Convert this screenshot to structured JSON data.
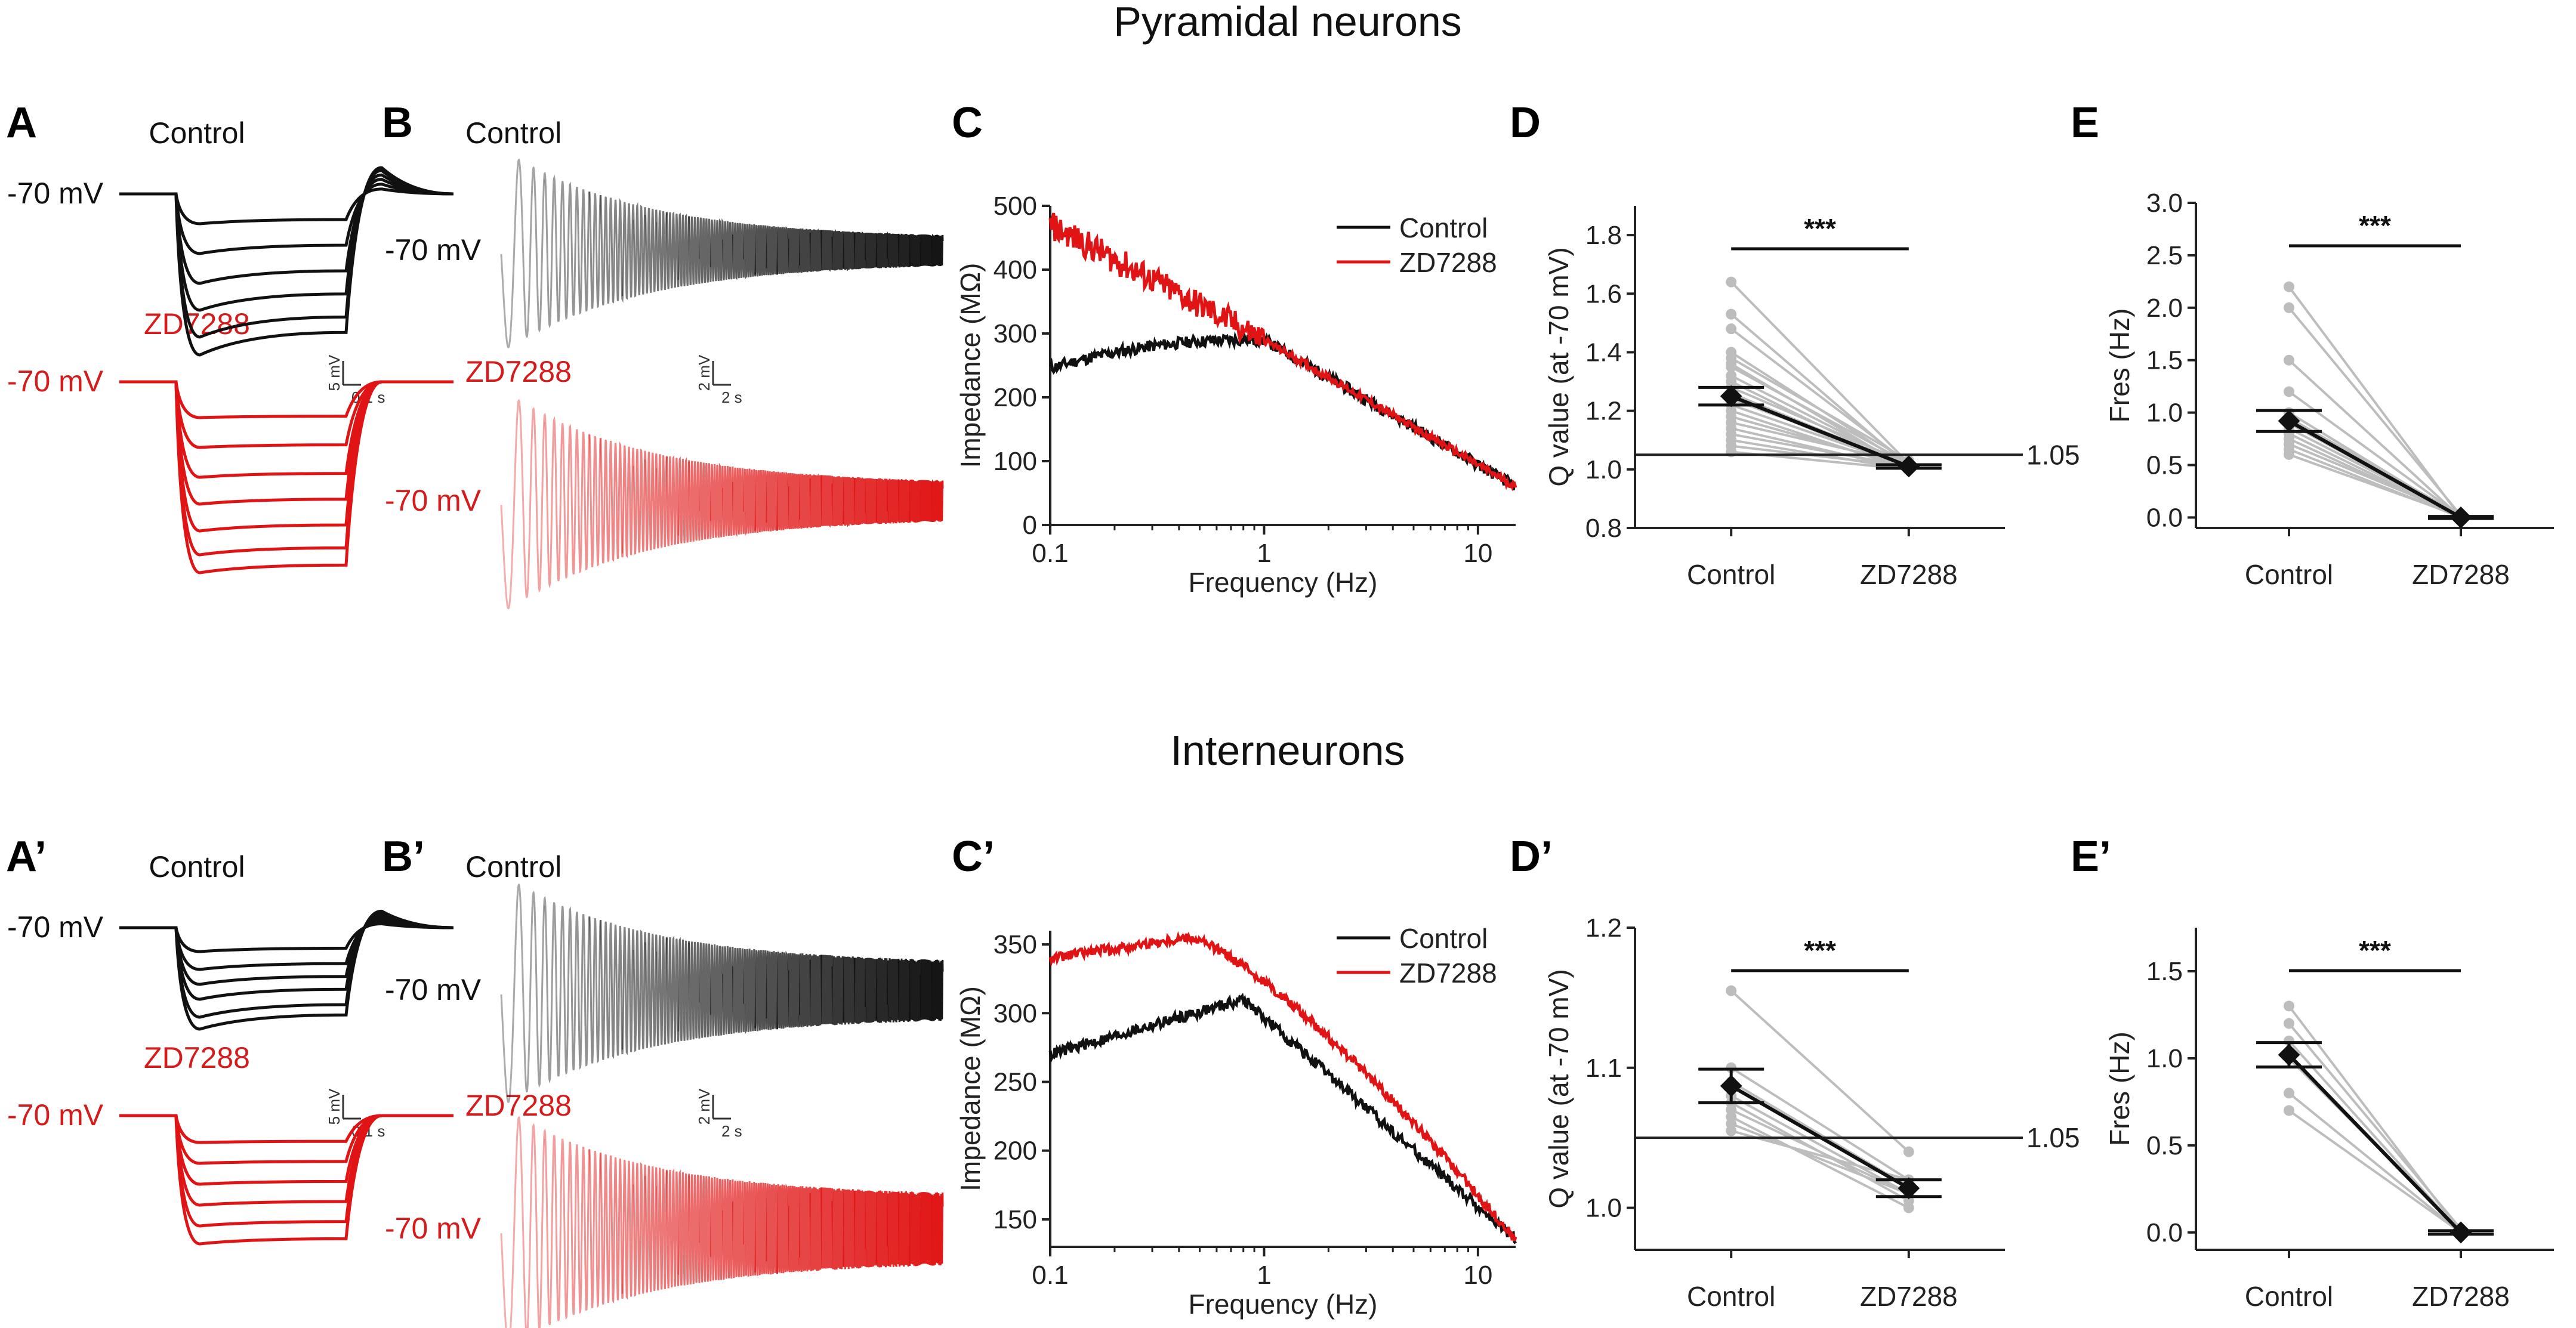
{
  "rows": [
    {
      "title": "Pyramidal neurons",
      "labels": {
        "A": "A",
        "B": "B",
        "C": "C",
        "D": "D",
        "E": "E"
      },
      "control_label": "Control",
      "drug_label": "ZD7288",
      "rest_label": "-70 mV",
      "scale_A": {
        "v": "5 mV",
        "t": "0.1 s"
      },
      "scale_B": {
        "v": "2 mV",
        "t": "2 s"
      },
      "panel_C": {
        "ylabel": "Impedance (MΩ)",
        "xlabel": "Frequency (Hz)",
        "ymin": 0,
        "ymax": 500,
        "yticks": [
          "0",
          "100",
          "200",
          "300",
          "400",
          "500"
        ],
        "xticks": [
          "0.1",
          "1",
          "10"
        ],
        "legend": [
          "Control",
          "ZD7288"
        ]
      },
      "panel_D": {
        "ylabel": "Q value (at -70 mV)",
        "ymin": 0.8,
        "ymax": 1.9,
        "yticks": [
          "0.8",
          "1.0",
          "1.2",
          "1.4",
          "1.6",
          "1.8"
        ],
        "ytick_values": [
          0.8,
          1.0,
          1.2,
          1.4,
          1.6,
          1.8
        ],
        "xticks": [
          "Control",
          "ZD7288"
        ],
        "threshold": 1.05,
        "threshold_label": "1.05",
        "sig": "***",
        "means": [
          1.25,
          1.01
        ],
        "sem": [
          0.03,
          0.006
        ],
        "paired": [
          [
            1.64,
            1.02
          ],
          [
            1.53,
            1.01
          ],
          [
            1.48,
            1.02
          ],
          [
            1.4,
            1.01
          ],
          [
            1.38,
            1.03
          ],
          [
            1.36,
            1.0
          ],
          [
            1.35,
            1.02
          ],
          [
            1.32,
            1.01
          ],
          [
            1.3,
            1.0
          ],
          [
            1.28,
            1.02
          ],
          [
            1.26,
            1.01
          ],
          [
            1.25,
            1.0
          ],
          [
            1.24,
            1.02
          ],
          [
            1.22,
            1.01
          ],
          [
            1.2,
            1.0
          ],
          [
            1.18,
            1.01
          ],
          [
            1.16,
            1.02
          ],
          [
            1.14,
            1.0
          ],
          [
            1.12,
            1.01
          ],
          [
            1.1,
            1.0
          ],
          [
            1.08,
            1.01
          ],
          [
            1.06,
            1.0
          ]
        ]
      },
      "panel_E": {
        "ylabel": "Fres (Hz)",
        "ymin": -0.1,
        "ymax": 3.0,
        "yticks": [
          "0.0",
          "0.5",
          "1.0",
          "1.5",
          "2.0",
          "2.5",
          "3.0"
        ],
        "ytick_values": [
          0.0,
          0.5,
          1.0,
          1.5,
          2.0,
          2.5,
          3.0
        ],
        "xticks": [
          "Control",
          "ZD7288"
        ],
        "sig": "***",
        "means": [
          0.92,
          0.0
        ],
        "sem": [
          0.1,
          0.01
        ],
        "paired": [
          [
            2.2,
            0.0
          ],
          [
            2.0,
            0.02
          ],
          [
            1.5,
            0.0
          ],
          [
            1.2,
            0.01
          ],
          [
            1.0,
            0.0
          ],
          [
            0.95,
            0.02
          ],
          [
            0.9,
            0.0
          ],
          [
            0.85,
            0.01
          ],
          [
            0.8,
            0.0
          ],
          [
            0.75,
            0.0
          ],
          [
            0.7,
            0.02
          ],
          [
            0.65,
            0.0
          ],
          [
            0.6,
            0.01
          ]
        ]
      }
    },
    {
      "title": "Interneurons",
      "labels": {
        "A": "A’",
        "B": "B’",
        "C": "C’",
        "D": "D’",
        "E": "E’"
      },
      "control_label": "Control",
      "drug_label": "ZD7288",
      "rest_label": "-70 mV",
      "scale_A": {
        "v": "5 mV",
        "t": "0.1 s"
      },
      "scale_B": {
        "v": "2 mV",
        "t": "2 s"
      },
      "panel_C": {
        "ylabel": "Impedance (MΩ)",
        "xlabel": "Frequency (Hz)",
        "ymin": 130,
        "ymax": 360,
        "yticks": [
          "150",
          "200",
          "250",
          "300",
          "350"
        ],
        "xticks": [
          "0.1",
          "1",
          "10"
        ],
        "legend": [
          "Control",
          "ZD7288"
        ]
      },
      "panel_D": {
        "ylabel": "Q value (at -70 mV)",
        "ymin": 0.97,
        "ymax": 1.2,
        "yticks": [
          "1.0",
          "1.1",
          "1.2"
        ],
        "ytick_values": [
          1.0,
          1.1,
          1.2
        ],
        "xticks": [
          "Control",
          "ZD7288"
        ],
        "threshold": 1.05,
        "threshold_label": "1.05",
        "sig": "***",
        "means": [
          1.087,
          1.014
        ],
        "sem": [
          0.012,
          0.006
        ],
        "paired": [
          [
            1.155,
            1.04
          ],
          [
            1.1,
            1.02
          ],
          [
            1.09,
            1.015
          ],
          [
            1.08,
            1.01
          ],
          [
            1.075,
            1.005
          ],
          [
            1.07,
            1.01
          ],
          [
            1.065,
            1.0
          ],
          [
            1.06,
            1.01
          ],
          [
            1.055,
            1.02
          ]
        ]
      },
      "panel_E": {
        "ylabel": "Fres (Hz)",
        "ymin": -0.1,
        "ymax": 1.75,
        "yticks": [
          "0.0",
          "0.5",
          "1.0",
          "1.5"
        ],
        "ytick_values": [
          0.0,
          0.5,
          1.0,
          1.5
        ],
        "xticks": [
          "Control",
          "ZD7288"
        ],
        "sig": "***",
        "means": [
          1.02,
          0.0
        ],
        "sem": [
          0.07,
          0.01
        ],
        "paired": [
          [
            1.3,
            0.0
          ],
          [
            1.2,
            0.02
          ],
          [
            1.1,
            0.0
          ],
          [
            1.0,
            0.01
          ],
          [
            0.8,
            0.0
          ],
          [
            0.7,
            0.0
          ]
        ]
      }
    }
  ],
  "colors": {
    "control": "#111111",
    "drug": "#e01414",
    "pair": "#bdbdbd"
  }
}
